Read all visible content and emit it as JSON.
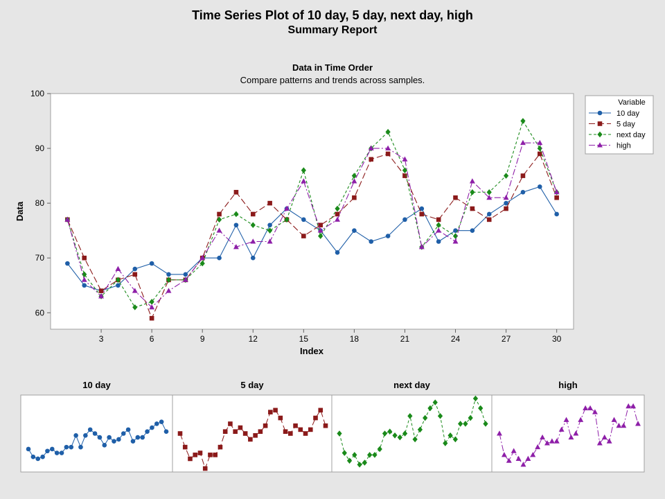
{
  "report": {
    "title": "Time Series Plot of 10 day, 5 day, next day, high",
    "subtitle": "Summary Report",
    "section_title": "Data in Time Order",
    "section_subtitle": "Compare patterns and trends across samples."
  },
  "legend": {
    "title": "Variable"
  },
  "chart_data": {
    "type": "line",
    "xlabel": "Index",
    "ylabel": "Data",
    "xlim": [
      0,
      31
    ],
    "ylim": [
      57,
      100
    ],
    "xticks": [
      3,
      6,
      9,
      12,
      15,
      18,
      21,
      24,
      27,
      30
    ],
    "yticks": [
      60,
      70,
      80,
      90,
      100
    ],
    "legend_position": "right",
    "x": [
      1,
      2,
      3,
      4,
      5,
      6,
      7,
      8,
      9,
      10,
      11,
      12,
      13,
      14,
      15,
      16,
      17,
      18,
      19,
      20,
      21,
      22,
      23,
      24,
      25,
      26,
      27,
      28,
      29,
      30
    ],
    "series": [
      {
        "name": "10 day",
        "color": "#1f5fa8",
        "marker": "circle",
        "dash": "",
        "values": [
          69,
          65,
          64,
          65,
          68,
          69,
          67,
          67,
          70,
          70,
          76,
          70,
          76,
          79,
          77,
          75,
          71,
          75,
          73,
          74,
          77,
          79,
          73,
          75,
          75,
          78,
          80,
          82,
          83,
          78
        ]
      },
      {
        "name": "5 day",
        "color": "#8b1a1a",
        "marker": "square",
        "dash": "9,4",
        "values": [
          77,
          70,
          64,
          66,
          67,
          59,
          66,
          66,
          70,
          78,
          82,
          78,
          80,
          77,
          74,
          76,
          78,
          81,
          88,
          89,
          85,
          78,
          77,
          81,
          79,
          77,
          79,
          85,
          89,
          81
        ]
      },
      {
        "name": "next day",
        "color": "#1a8a1a",
        "marker": "diamond",
        "dash": "4,3",
        "values": [
          77,
          67,
          63,
          66,
          61,
          62,
          66,
          66,
          69,
          77,
          78,
          76,
          75,
          77,
          86,
          74,
          79,
          85,
          90,
          93,
          86,
          72,
          76,
          74,
          82,
          82,
          85,
          95,
          90,
          82
        ]
      },
      {
        "name": "high",
        "color": "#8e1fa8",
        "marker": "triangle",
        "dash": "9,3,2,3",
        "values": [
          77,
          66,
          63,
          68,
          64,
          61,
          64,
          66,
          70,
          75,
          72,
          73,
          73,
          79,
          84,
          75,
          77,
          84,
          90,
          90,
          88,
          72,
          75,
          73,
          84,
          81,
          81,
          91,
          91,
          82
        ]
      }
    ],
    "small_multiples": [
      {
        "title": "10 day",
        "series_index": 0
      },
      {
        "title": "5 day",
        "series_index": 1
      },
      {
        "title": "next day",
        "series_index": 2
      },
      {
        "title": "high",
        "series_index": 3
      }
    ]
  }
}
